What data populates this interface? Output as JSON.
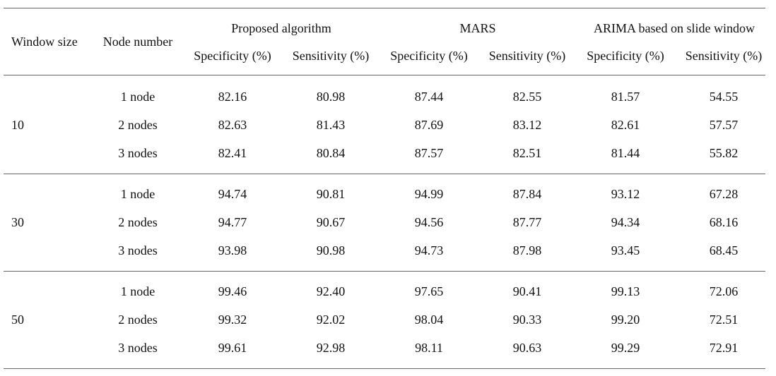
{
  "table": {
    "headers": {
      "window_size": "Window size",
      "node_number": "Node number",
      "methods": [
        "Proposed algorithm",
        "MARS",
        "ARIMA based on slide window"
      ],
      "metrics": [
        "Specificity (%)",
        "Sensitivity (%)"
      ]
    },
    "groups": [
      {
        "window": "10",
        "rows": [
          {
            "node": "1 node",
            "values": [
              "82.16",
              "80.98",
              "87.44",
              "82.55",
              "81.57",
              "54.55"
            ]
          },
          {
            "node": "2 nodes",
            "values": [
              "82.63",
              "81.43",
              "87.69",
              "83.12",
              "82.61",
              "57.57"
            ]
          },
          {
            "node": "3 nodes",
            "values": [
              "82.41",
              "80.84",
              "87.57",
              "82.51",
              "81.44",
              "55.82"
            ]
          }
        ]
      },
      {
        "window": "30",
        "rows": [
          {
            "node": "1 node",
            "values": [
              "94.74",
              "90.81",
              "94.99",
              "87.84",
              "93.12",
              "67.28"
            ]
          },
          {
            "node": "2 nodes",
            "values": [
              "94.77",
              "90.67",
              "94.56",
              "87.77",
              "94.34",
              "68.16"
            ]
          },
          {
            "node": "3 nodes",
            "values": [
              "93.98",
              "90.98",
              "94.73",
              "87.98",
              "93.45",
              "68.45"
            ]
          }
        ]
      },
      {
        "window": "50",
        "rows": [
          {
            "node": "1 node",
            "values": [
              "99.46",
              "92.40",
              "97.65",
              "90.41",
              "99.13",
              "72.06"
            ]
          },
          {
            "node": "2 nodes",
            "values": [
              "99.32",
              "92.02",
              "98.04",
              "90.33",
              "99.20",
              "72.51"
            ]
          },
          {
            "node": "3 nodes",
            "values": [
              "99.61",
              "92.98",
              "98.11",
              "90.63",
              "99.29",
              "72.91"
            ]
          }
        ]
      }
    ]
  }
}
